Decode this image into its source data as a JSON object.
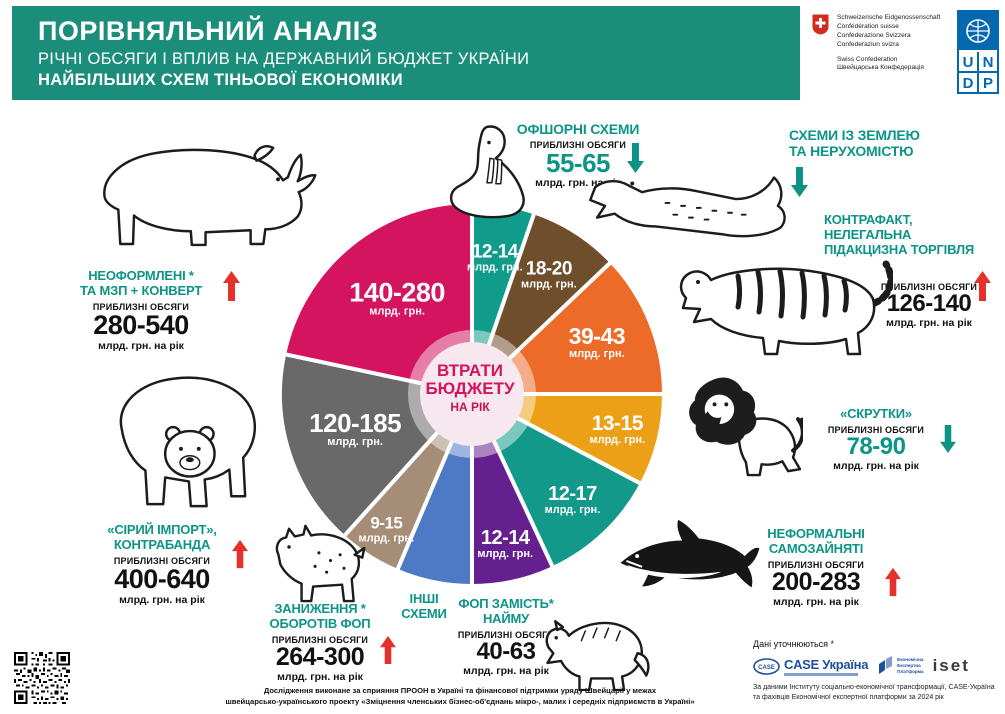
{
  "header": {
    "title": "ПОРІВНЯЛЬНИЙ АНАЛІЗ",
    "subtitle1": "РІЧНІ ОБСЯГИ І ВПЛИВ НА ДЕРЖАВНИЙ БЮДЖЕТ УКРАЇНИ",
    "subtitle2": "НАЙБІЛЬШИХ СХЕМ ТІНЬОВОЇ ЕКОНОМІКИ",
    "bg_color": "#1b8e7b"
  },
  "logos": {
    "swiss": {
      "lines": [
        "Schweizerische Eidgenossenschaft",
        "Confédération suisse",
        "Confederazione Svizzera",
        "Confederaziun svizra"
      ],
      "lines2": [
        "Swiss Confederation",
        "Швейцарська Конфедерація"
      ]
    },
    "undp": {
      "letters": [
        "U",
        "N",
        "D",
        "P"
      ],
      "color": "#0468b1"
    }
  },
  "chart_data": {
    "type": "pie",
    "title": "ВТРАТИ БЮДЖЕТУ НА РІК",
    "unit": "млрд. грн.",
    "legend_position": "around",
    "segments": [
      {
        "scheme": "ОФШОРНІ СХЕМИ",
        "loss": "12-14",
        "approx_volume": "55-65",
        "trend": "down",
        "color": "#109b8a",
        "start_deg": 0,
        "end_deg": 19,
        "label_r": 0.72,
        "font": 19,
        "animal": "walrus"
      },
      {
        "scheme": "СХЕМИ ІЗ ЗЕМЛЕЮ ТА НЕРУХОМІСТЮ",
        "loss": "18-20",
        "approx_volume": "",
        "trend": "down",
        "color": "#6f4e2c",
        "start_deg": 19,
        "end_deg": 46.5,
        "label_r": 0.74,
        "font": 19,
        "animal": "crocodile"
      },
      {
        "scheme": "КОНТРАФАКТ, НЕЛЕГАЛЬНА ПІДАКЦИЗНА ТОРГІВЛЯ",
        "loss": "39-43",
        "approx_volume": "126-140",
        "trend": "up",
        "color": "#ed6b29",
        "start_deg": 46.5,
        "end_deg": 90,
        "label_r": 0.7,
        "font": 23,
        "animal": "tiger"
      },
      {
        "scheme": "«СКРУТКИ»",
        "loss": "13-15",
        "approx_volume": "78-90",
        "trend": "down",
        "color": "#eca017",
        "start_deg": 90,
        "end_deg": 118,
        "label_r": 0.78,
        "font": 21,
        "animal": "lion"
      },
      {
        "scheme": "НЕФОРМАЛЬНІ САМОЗАЙНЯТІ",
        "loss": "12-17",
        "approx_volume": "200-283",
        "trend": "up",
        "color": "#12998a",
        "start_deg": 118,
        "end_deg": 155,
        "label_r": 0.76,
        "font": 20,
        "animal": "shark"
      },
      {
        "scheme": "ФОП ЗАМІСТЬ НАЙМУ",
        "loss": "12-14",
        "approx_volume": "40-63",
        "trend": "up",
        "color": "#64208f",
        "start_deg": 155,
        "end_deg": 180,
        "label_r": 0.8,
        "font": 20,
        "animal": "wolf"
      },
      {
        "scheme": "ІНШІ СХЕМИ",
        "loss": "",
        "approx_volume": "",
        "trend": "",
        "color": "#4e79c5",
        "start_deg": 180,
        "end_deg": 203,
        "label_r": 0,
        "font": 0,
        "animal": ""
      },
      {
        "scheme": "ЗАНИЖЕННЯ ОБОРОТІВ ФОП",
        "loss": "9-15",
        "approx_volume": "264-300",
        "trend": "up",
        "color": "#a68d77",
        "start_deg": 203,
        "end_deg": 222,
        "label_r": 0.83,
        "font": 17,
        "animal": "lynx"
      },
      {
        "scheme": "«СІРИЙ ІМПОРТ», КОНТРАБАНДА",
        "loss": "120-185",
        "approx_volume": "400-640",
        "trend": "up",
        "color": "#6a6969",
        "start_deg": 222,
        "end_deg": 282,
        "label_r": 0.64,
        "font": 26,
        "animal": "bear"
      },
      {
        "scheme": "НЕОФОРМЛЕНІ ТА МЗП + КОНВЕРТ",
        "loss": "140-280",
        "approx_volume": "280-540",
        "trend": "up",
        "color": "#d4145f",
        "start_deg": 282,
        "end_deg": 360,
        "label_r": 0.62,
        "font": 27,
        "animal": "rhino"
      }
    ]
  },
  "center": {
    "line1": "ВТРАТИ",
    "line2": "БЮДЖЕТУ",
    "line3": "НА РІК"
  },
  "schemes": [
    {
      "id": "offshore",
      "title_lines": [
        "ОФШОРНІ СХЕМИ"
      ],
      "approx_label": "ПРИБЛИЗНІ ОБСЯГИ",
      "value": "55-65",
      "unit": "млрд. грн. на рік",
      "trend": "down",
      "animal": "walrus"
    },
    {
      "id": "land",
      "title_lines": [
        "СХЕМИ ІЗ ЗЕМЛЕЮ",
        "ТА НЕРУХОМІСТЮ"
      ],
      "trend": "down",
      "animal": "crocodile"
    },
    {
      "id": "counterfeit",
      "title_lines": [
        "КОНТРАФАКТ,",
        "НЕЛЕГАЛЬНА",
        "ПІДАКЦИЗНА ТОРГІВЛЯ"
      ],
      "approx_label": "ПРИБЛИЗНІ ОБСЯГИ",
      "value": "126-140",
      "unit": "млрд. грн. на рік",
      "trend": "up",
      "animal": "tiger"
    },
    {
      "id": "skrutky",
      "title_lines": [
        "«СКРУТКИ»"
      ],
      "approx_label": "ПРИБЛИЗНІ ОБСЯГИ",
      "value": "78-90",
      "unit": "млрд. грн. на рік",
      "trend": "down",
      "animal": "lion"
    },
    {
      "id": "informal",
      "title_lines": [
        "НЕФОРМАЛЬНІ",
        "САМОЗАЙНЯТІ"
      ],
      "approx_label": "ПРИБЛИЗНІ ОБСЯГИ",
      "value": "200-283",
      "unit": "млрд. грн. на рік",
      "trend": "up",
      "animal": "shark"
    },
    {
      "id": "fop",
      "title_lines": [
        "ФОП ЗАМІСТЬ*",
        "НАЙМУ"
      ],
      "approx_label": "ПРИБЛИЗНІ ОБСЯГИ",
      "value": "40-63",
      "unit": "млрд. грн. на рік",
      "trend": "up",
      "animal": "wolf"
    },
    {
      "id": "other",
      "title_lines": [
        "ІНШІ",
        "СХЕМИ"
      ],
      "animal": ""
    },
    {
      "id": "underreport",
      "title_lines": [
        "ЗАНИЖЕННЯ *",
        "ОБОРОТІВ ФОП"
      ],
      "approx_label": "ПРИБЛИЗНІ ОБСЯГИ",
      "value": "264-300",
      "unit": "млрд. грн. на рік",
      "trend": "up",
      "animal": "lynx"
    },
    {
      "id": "gray",
      "title_lines": [
        "«СІРИЙ ІМПОРТ»,",
        "КОНТРАБАНДА"
      ],
      "approx_label": "ПРИБЛИЗНІ ОБСЯГИ",
      "value": "400-640",
      "unit": "млрд. грн. на рік",
      "trend": "up",
      "animal": "bear"
    },
    {
      "id": "unreg",
      "title_lines": [
        "НЕОФОРМЛЕНІ *",
        "ТА МЗП + КОНВЕРТ"
      ],
      "approx_label": "ПРИБЛИЗНІ ОБСЯГИ",
      "value": "280-540",
      "unit": "млрд. грн. на рік",
      "trend": "up",
      "animal": "rhino"
    }
  ],
  "sources": {
    "note": "Дані уточнюються *",
    "case_abbr": "CASE",
    "case_name": "CASE Україна",
    "eep_lines": [
      "Економічна",
      "Експертна",
      "Платформа"
    ],
    "iset": "iset",
    "line1": "За даними Інституту соціально-економічної трансформації, CASE-Україна",
    "line2": "та фахівців Економічної експертної платформи за 2024 рік"
  },
  "footer": {
    "line1": "Дослідження виконане за сприяння ПРООН в Україні та фінансової підтримки уряду Швейцарії у межах",
    "line2": "швейцарсько-українського проекту «Зміцнення членських бізнес-об'єднань мікро-, малих і середніх підприємств в Україні»"
  },
  "colors": {
    "header_bg": "#1b8e7b",
    "teal_text": "#0d9488",
    "magenta": "#d4145f",
    "arrow_up": "#e5312b",
    "arrow_down": "#0d9383",
    "undp_blue": "#0468b1",
    "swiss_red": "#d52b1e",
    "case_blue": "#1f4e9c"
  }
}
